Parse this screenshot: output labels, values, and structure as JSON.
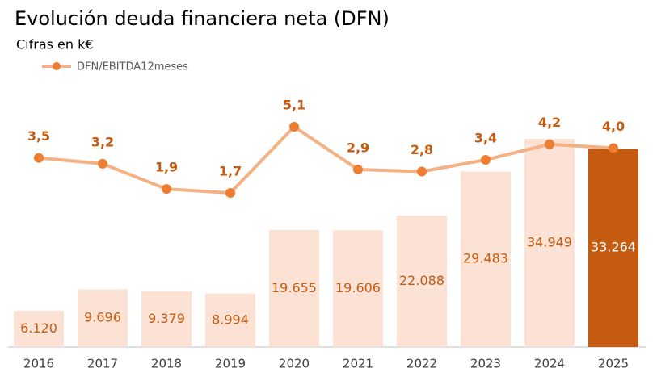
{
  "chart_data": {
    "type": "bar-line",
    "title": "Evolución deuda financiera neta (DFN)",
    "subtitle": "Cifras en k€",
    "categories": [
      "2016",
      "2017",
      "2018",
      "2019",
      "2020",
      "2021",
      "2022",
      "2023",
      "2024",
      "2025"
    ],
    "bars": {
      "values": [
        6120,
        9696,
        9379,
        8994,
        19655,
        19606,
        22088,
        29483,
        34949,
        33264
      ],
      "value_labels": [
        "6.120",
        "9.696",
        "9.379",
        "8.994",
        "19.655",
        "19.606",
        "22.088",
        "29.483",
        "34.949",
        "33.264"
      ],
      "colors": [
        "#fbe2d5",
        "#fbe2d5",
        "#fbe2d5",
        "#fbe2d5",
        "#fbe2d5",
        "#fbe2d5",
        "#fbe2d5",
        "#fbe2d5",
        "#fbe2d5",
        "#c55a11"
      ]
    },
    "line": {
      "name": "DFN/EBITDA12meses",
      "color": "#f4b183",
      "marker_color": "#ed7d31",
      "values": [
        3.5,
        3.2,
        1.9,
        1.7,
        5.1,
        2.9,
        2.8,
        3.4,
        4.2,
        4.0
      ],
      "value_labels": [
        "3,5",
        "3,2",
        "1,9",
        "1,7",
        "5,1",
        "2,9",
        "2,8",
        "3,4",
        "4,2",
        "4,0"
      ]
    },
    "legend": "top-left"
  }
}
